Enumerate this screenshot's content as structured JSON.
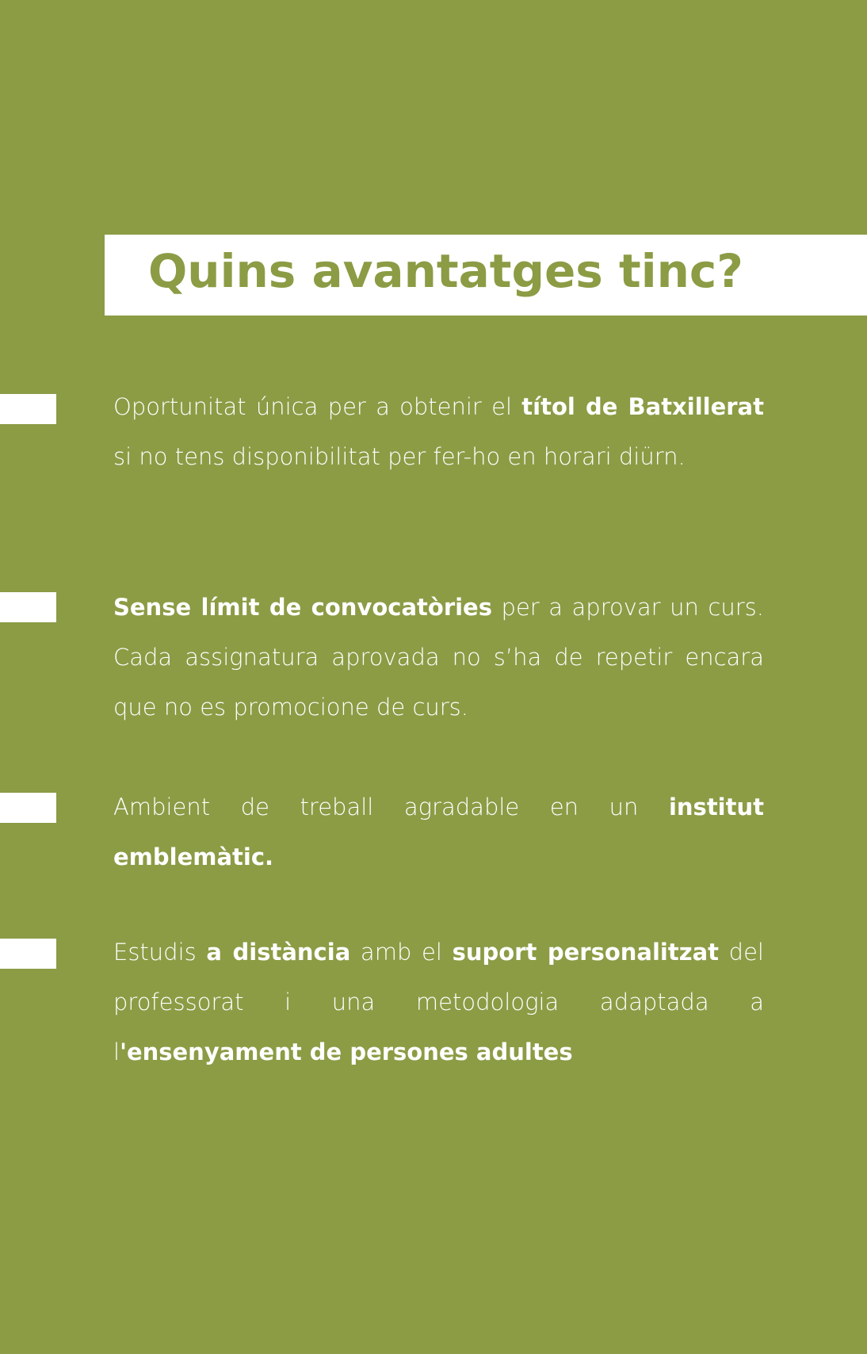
{
  "colors": {
    "background": "#8b9c45",
    "banner": "#ffffff",
    "text": "#ffffff"
  },
  "title": "Quins avantatges tinc?",
  "items": [
    {
      "parts": [
        {
          "t": "Oportunitat única per a obtenir el ",
          "b": false
        },
        {
          "t": "títol de Batxillerat",
          "b": true
        },
        {
          "t": " si no tens disponibilitat per fer-ho en horari diürn.",
          "b": false
        }
      ]
    },
    {
      "parts": [
        {
          "t": "Sense límit de convocatòries",
          "b": true
        },
        {
          "t": " per a aprovar un curs. Cada assignatura aprovada no s’ha de repetir encara que no es promocione de curs.",
          "b": false
        }
      ]
    },
    {
      "parts": [
        {
          "t": "Ambient de treball agradable en un ",
          "b": false
        },
        {
          "t": "institut emblemàtic.",
          "b": true
        }
      ]
    },
    {
      "parts": [
        {
          "t": "Estudis ",
          "b": false
        },
        {
          "t": "a distància",
          "b": true
        },
        {
          "t": " amb el ",
          "b": false
        },
        {
          "t": "suport personalitzat",
          "b": true
        },
        {
          "t": " del professorat i una metodologia adaptada a l",
          "b": false
        },
        {
          "t": "'ensenyament de persones adultes",
          "b": true
        }
      ]
    }
  ]
}
